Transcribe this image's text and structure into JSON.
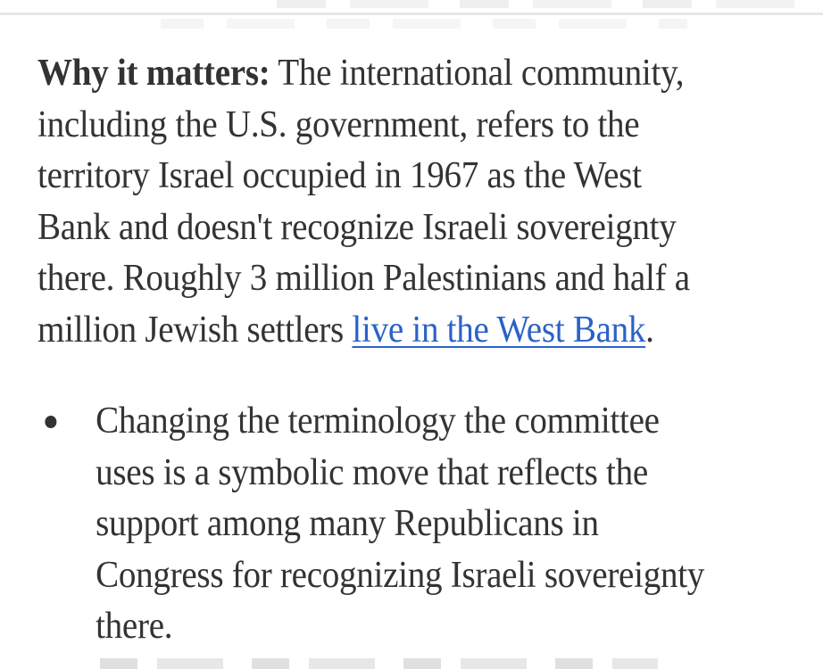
{
  "colors": {
    "body_text": "#333333",
    "link": "#2b62c9",
    "divider": "#e7e7e7"
  },
  "article": {
    "paragraph_lines": [
      {
        "bold": "Why it matters:",
        "text": " The international community,"
      },
      {
        "text": "including the U.S. government, refers to the"
      },
      {
        "text": "territory Israel occupied in 1967 as the West"
      },
      {
        "text": "Bank and doesn't recognize Israeli sovereignty"
      },
      {
        "text": "there. Roughly 3 million Palestinians and half a"
      },
      {
        "text": "million Jewish settlers ",
        "link": "live in the West Bank",
        "after": "."
      }
    ],
    "bullet_lines": [
      "Changing the terminology the committee",
      "uses is a symbolic move that reflects the",
      "support among many Republicans in",
      "Congress for recognizing Israeli sovereignty",
      "there."
    ]
  }
}
